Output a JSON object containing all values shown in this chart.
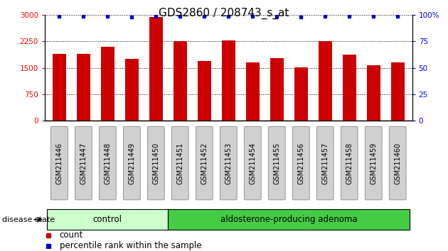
{
  "title": "GDS2860 / 208743_s_at",
  "categories": [
    "GSM211446",
    "GSM211447",
    "GSM211448",
    "GSM211449",
    "GSM211450",
    "GSM211451",
    "GSM211452",
    "GSM211453",
    "GSM211454",
    "GSM211455",
    "GSM211456",
    "GSM211457",
    "GSM211458",
    "GSM211459",
    "GSM211460"
  ],
  "counts": [
    1900,
    1900,
    2100,
    1750,
    2950,
    2250,
    1700,
    2270,
    1650,
    1780,
    1520,
    2260,
    1870,
    1580,
    1650
  ],
  "percentiles": [
    99,
    99,
    99,
    98,
    99,
    99,
    99,
    99,
    99,
    99,
    98,
    99,
    99,
    99,
    99
  ],
  "bar_color": "#cc0000",
  "percentile_color": "#0000cc",
  "ylim_left": [
    0,
    3000
  ],
  "ylim_right": [
    0,
    100
  ],
  "yticks_left": [
    0,
    750,
    1500,
    2250,
    3000
  ],
  "yticks_right": [
    0,
    25,
    50,
    75,
    100
  ],
  "control_n": 5,
  "adenoma_n": 10,
  "control_label": "control",
  "adenoma_label": "aldosterone-producing adenoma",
  "control_color": "#ccffcc",
  "adenoma_color": "#44cc44",
  "disease_state_label": "disease state",
  "legend_count_label": "count",
  "legend_percentile_label": "percentile rank within the sample",
  "bar_width": 0.55,
  "title_fontsize": 11,
  "tick_fontsize": 7.5,
  "label_fontsize": 8.5,
  "group_label_fontsize": 8.5,
  "ds_fontsize": 8
}
